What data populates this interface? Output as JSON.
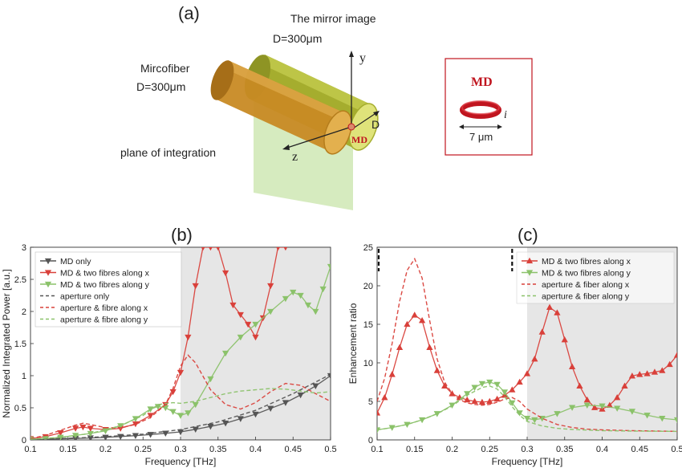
{
  "panel_a": {
    "label": "(a)",
    "mirror_title": "The mirror image",
    "mirror_d": "D=300μm",
    "fiber_title": "Mircofiber",
    "fiber_d": "D=300μm",
    "plane_label": "plane of integration",
    "axis_y": "y",
    "axis_z": "z",
    "axis_d": "D",
    "md_label": "MD",
    "inset_title": "MD",
    "inset_i": "i",
    "inset_size": "7 μm",
    "colors": {
      "mirror": "#9aa62a",
      "fiber": "#c98a1e",
      "plane": "#cfe8b4",
      "md": "#c0151f"
    }
  },
  "chart_data": [
    {
      "type": "line",
      "panel_label": "(b)",
      "xlabel": "Frequency  [THz]",
      "ylabel": "Normalized Integrated Power [a.u.]",
      "xlim": [
        0.1,
        0.5
      ],
      "ylim": [
        0,
        3
      ],
      "xticks": [
        "0.1",
        "0.15",
        "0.2",
        "0.25",
        "0.3",
        "0.35",
        "0.4",
        "0.45",
        "0.5"
      ],
      "yticks": [
        "0",
        "0.5",
        "1",
        "1.5",
        "2",
        "2.5",
        "3"
      ],
      "shaded_region": [
        0.3,
        0.5
      ],
      "legend_position": "top-left",
      "series": [
        {
          "name": "MD only",
          "color": "#555555",
          "style": "solid",
          "marker": "triangle-down",
          "x": [
            0.1,
            0.12,
            0.14,
            0.16,
            0.18,
            0.2,
            0.22,
            0.24,
            0.26,
            0.28,
            0.3,
            0.32,
            0.34,
            0.36,
            0.38,
            0.4,
            0.42,
            0.44,
            0.46,
            0.48,
            0.5
          ],
          "y": [
            0.01,
            0.012,
            0.016,
            0.022,
            0.03,
            0.04,
            0.052,
            0.066,
            0.083,
            0.103,
            0.125,
            0.165,
            0.21,
            0.26,
            0.33,
            0.4,
            0.49,
            0.58,
            0.7,
            0.84,
            1.0
          ]
        },
        {
          "name": "MD & two fibres along x",
          "color": "#d9403a",
          "style": "solid",
          "marker": "triangle-down",
          "x": [
            0.1,
            0.12,
            0.14,
            0.16,
            0.17,
            0.18,
            0.2,
            0.22,
            0.24,
            0.26,
            0.28,
            0.29,
            0.3,
            0.31,
            0.32,
            0.33,
            0.34,
            0.35,
            0.36,
            0.37,
            0.38,
            0.39,
            0.4,
            0.41,
            0.42,
            0.43,
            0.44
          ],
          "y": [
            0.02,
            0.05,
            0.11,
            0.18,
            0.2,
            0.18,
            0.16,
            0.18,
            0.25,
            0.38,
            0.55,
            0.75,
            1.05,
            1.6,
            2.4,
            3.0,
            3.0,
            3.0,
            2.6,
            2.1,
            1.95,
            1.8,
            1.6,
            1.9,
            2.4,
            3.0,
            3.0
          ]
        },
        {
          "name": "MD & two fibres along y",
          "color": "#8bc26a",
          "style": "solid",
          "marker": "triangle-down",
          "x": [
            0.1,
            0.12,
            0.14,
            0.16,
            0.18,
            0.2,
            0.22,
            0.24,
            0.26,
            0.27,
            0.28,
            0.29,
            0.3,
            0.31,
            0.32,
            0.34,
            0.36,
            0.38,
            0.4,
            0.42,
            0.44,
            0.45,
            0.46,
            0.47,
            0.48,
            0.49,
            0.5
          ],
          "y": [
            0.01,
            0.02,
            0.04,
            0.07,
            0.1,
            0.14,
            0.22,
            0.33,
            0.48,
            0.52,
            0.5,
            0.44,
            0.38,
            0.42,
            0.55,
            0.95,
            1.35,
            1.6,
            1.8,
            2.0,
            2.2,
            2.3,
            2.25,
            2.1,
            2.0,
            2.35,
            2.7
          ]
        },
        {
          "name": "aperture only",
          "color": "#555555",
          "style": "dashed",
          "marker": "none",
          "x": [
            0.1,
            0.15,
            0.2,
            0.25,
            0.3,
            0.35,
            0.4,
            0.45,
            0.5
          ],
          "y": [
            0.01,
            0.025,
            0.05,
            0.09,
            0.16,
            0.28,
            0.46,
            0.72,
            1.02
          ]
        },
        {
          "name": "aperture & fibre along x",
          "color": "#d9403a",
          "style": "dashed",
          "marker": "none",
          "x": [
            0.1,
            0.12,
            0.14,
            0.16,
            0.17,
            0.18,
            0.2,
            0.22,
            0.24,
            0.26,
            0.28,
            0.29,
            0.3,
            0.31,
            0.32,
            0.34,
            0.36,
            0.38,
            0.4,
            0.42,
            0.44,
            0.46,
            0.48,
            0.5
          ],
          "y": [
            0.02,
            0.07,
            0.15,
            0.23,
            0.26,
            0.24,
            0.19,
            0.19,
            0.24,
            0.35,
            0.55,
            0.8,
            1.15,
            1.32,
            1.2,
            0.78,
            0.55,
            0.48,
            0.58,
            0.75,
            0.88,
            0.85,
            0.72,
            0.6
          ]
        },
        {
          "name": "aperture & fibre along y",
          "color": "#8bc26a",
          "style": "dashed",
          "marker": "none",
          "x": [
            0.1,
            0.14,
            0.18,
            0.22,
            0.25,
            0.27,
            0.29,
            0.3,
            0.32,
            0.34,
            0.36,
            0.38,
            0.4,
            0.42,
            0.44,
            0.46,
            0.48,
            0.5
          ],
          "y": [
            0.01,
            0.04,
            0.1,
            0.22,
            0.38,
            0.55,
            0.58,
            0.57,
            0.6,
            0.66,
            0.72,
            0.76,
            0.78,
            0.8,
            0.79,
            0.76,
            0.73,
            0.75
          ]
        }
      ]
    },
    {
      "type": "line",
      "panel_label": "(c)",
      "xlabel": "Frequency  [THz]",
      "ylabel": "Enhancement ratio",
      "xlim": [
        0.1,
        0.5
      ],
      "ylim": [
        0,
        25
      ],
      "xticks": [
        "0.1",
        "0.15",
        "0.2",
        "0.25",
        "0.3",
        "0.35",
        "0.4",
        "0.45",
        "0.5"
      ],
      "yticks": [
        "0",
        "5",
        "10",
        "15",
        "20",
        "25"
      ],
      "shaded_region": [
        0.3,
        0.5
      ],
      "vertical_markers": [
        0.1,
        0.28
      ],
      "legend_position": "top-right",
      "series": [
        {
          "name": "MD & two fibres along x",
          "color": "#d9403a",
          "style": "solid",
          "marker": "triangle-up",
          "x": [
            0.1,
            0.11,
            0.12,
            0.13,
            0.14,
            0.15,
            0.16,
            0.17,
            0.18,
            0.19,
            0.2,
            0.21,
            0.22,
            0.23,
            0.24,
            0.25,
            0.26,
            0.27,
            0.28,
            0.29,
            0.3,
            0.31,
            0.32,
            0.33,
            0.34,
            0.35,
            0.36,
            0.37,
            0.38,
            0.39,
            0.4,
            0.41,
            0.42,
            0.43,
            0.44,
            0.45,
            0.46,
            0.47,
            0.48,
            0.49,
            0.5
          ],
          "y": [
            3.5,
            5.5,
            8.5,
            12.0,
            15.0,
            16.2,
            15.5,
            12.0,
            9.0,
            7.0,
            6.0,
            5.5,
            5.2,
            5.0,
            4.9,
            5.0,
            5.3,
            5.8,
            6.5,
            7.5,
            8.6,
            10.5,
            14.0,
            17.2,
            16.5,
            13.0,
            9.5,
            7.0,
            5.2,
            4.2,
            4.0,
            4.5,
            5.5,
            7.0,
            8.3,
            8.5,
            8.6,
            8.8,
            9.0,
            9.8,
            11.0
          ]
        },
        {
          "name": "MD & two fibres along y",
          "color": "#8bc26a",
          "style": "solid",
          "marker": "triangle-down",
          "x": [
            0.1,
            0.12,
            0.14,
            0.16,
            0.18,
            0.2,
            0.22,
            0.23,
            0.24,
            0.25,
            0.26,
            0.27,
            0.28,
            0.29,
            0.3,
            0.31,
            0.32,
            0.34,
            0.36,
            0.38,
            0.4,
            0.42,
            0.44,
            0.46,
            0.48,
            0.5
          ],
          "y": [
            1.3,
            1.6,
            2.0,
            2.6,
            3.4,
            4.5,
            6.0,
            6.8,
            7.3,
            7.5,
            7.2,
            6.2,
            4.8,
            3.5,
            2.8,
            2.6,
            2.8,
            3.4,
            4.2,
            4.5,
            4.4,
            4.1,
            3.7,
            3.2,
            2.8,
            2.6
          ]
        },
        {
          "name": "aperture & fiber along x",
          "color": "#d9403a",
          "style": "dashed",
          "marker": "none",
          "x": [
            0.1,
            0.11,
            0.12,
            0.13,
            0.14,
            0.15,
            0.16,
            0.17,
            0.18,
            0.19,
            0.2,
            0.21,
            0.22,
            0.23,
            0.24,
            0.25,
            0.26,
            0.27,
            0.28,
            0.29,
            0.3,
            0.32,
            0.34,
            0.36,
            0.38,
            0.4,
            0.44,
            0.5
          ],
          "y": [
            5.0,
            8.0,
            12.5,
            18.0,
            22.0,
            23.5,
            21.0,
            15.5,
            10.5,
            7.5,
            6.0,
            5.2,
            4.8,
            4.6,
            4.5,
            4.6,
            4.9,
            5.3,
            5.5,
            5.0,
            4.0,
            2.8,
            2.0,
            1.6,
            1.4,
            1.3,
            1.2,
            1.1
          ]
        },
        {
          "name": "aperture & fiber along y",
          "color": "#8bc26a",
          "style": "dashed",
          "marker": "none",
          "x": [
            0.1,
            0.12,
            0.14,
            0.16,
            0.18,
            0.2,
            0.22,
            0.24,
            0.25,
            0.26,
            0.27,
            0.28,
            0.29,
            0.3,
            0.32,
            0.34,
            0.36,
            0.4,
            0.44,
            0.5
          ],
          "y": [
            1.3,
            1.6,
            2.0,
            2.6,
            3.4,
            4.4,
            5.8,
            6.8,
            7.0,
            6.6,
            5.6,
            4.3,
            3.2,
            2.4,
            1.8,
            1.5,
            1.35,
            1.2,
            1.15,
            1.1
          ]
        }
      ]
    }
  ]
}
